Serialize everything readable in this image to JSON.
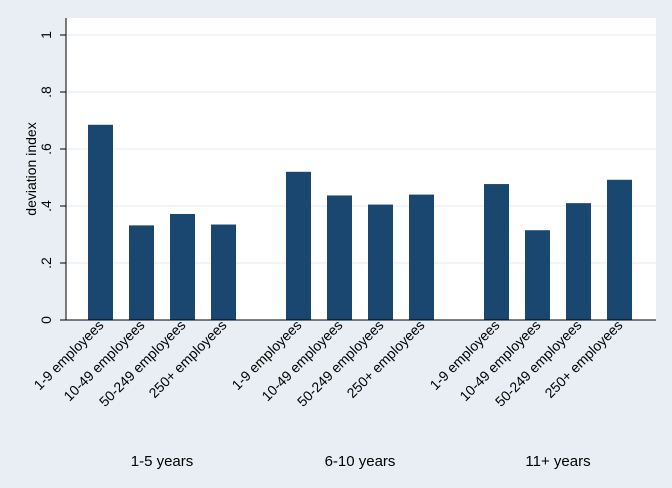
{
  "chart_data": {
    "type": "bar",
    "title": "",
    "xlabel": "",
    "ylabel": "deviation index",
    "ylim": [
      0,
      1
    ],
    "yticks": [
      {
        "value": 0,
        "label": "0"
      },
      {
        "value": 0.2,
        "label": ".2"
      },
      {
        "value": 0.4,
        "label": ".4"
      },
      {
        "value": 0.6,
        "label": ".6"
      },
      {
        "value": 0.8,
        "label": ".8"
      },
      {
        "value": 1,
        "label": "1"
      }
    ],
    "grid": true,
    "legend": "none",
    "colors": {
      "bar": "#1a476f",
      "plot_bg": "#ffffff",
      "outer_bg": "#e8eef3",
      "grid": "#e6ebef"
    },
    "groups": [
      {
        "name": "1-5 years",
        "categories": [
          "1-9 employees",
          "10-49 employees",
          "50-249 employees",
          "250+ employees"
        ],
        "values": [
          0.685,
          0.332,
          0.372,
          0.335
        ]
      },
      {
        "name": "6-10 years",
        "categories": [
          "1-9 employees",
          "10-49 employees",
          "50-249 employees",
          "250+ employees"
        ],
        "values": [
          0.52,
          0.437,
          0.405,
          0.44
        ]
      },
      {
        "name": "11+ years",
        "categories": [
          "1-9 employees",
          "10-49 employees",
          "50-249 employees",
          "250+ employees"
        ],
        "values": [
          0.477,
          0.315,
          0.41,
          0.492
        ]
      }
    ]
  }
}
